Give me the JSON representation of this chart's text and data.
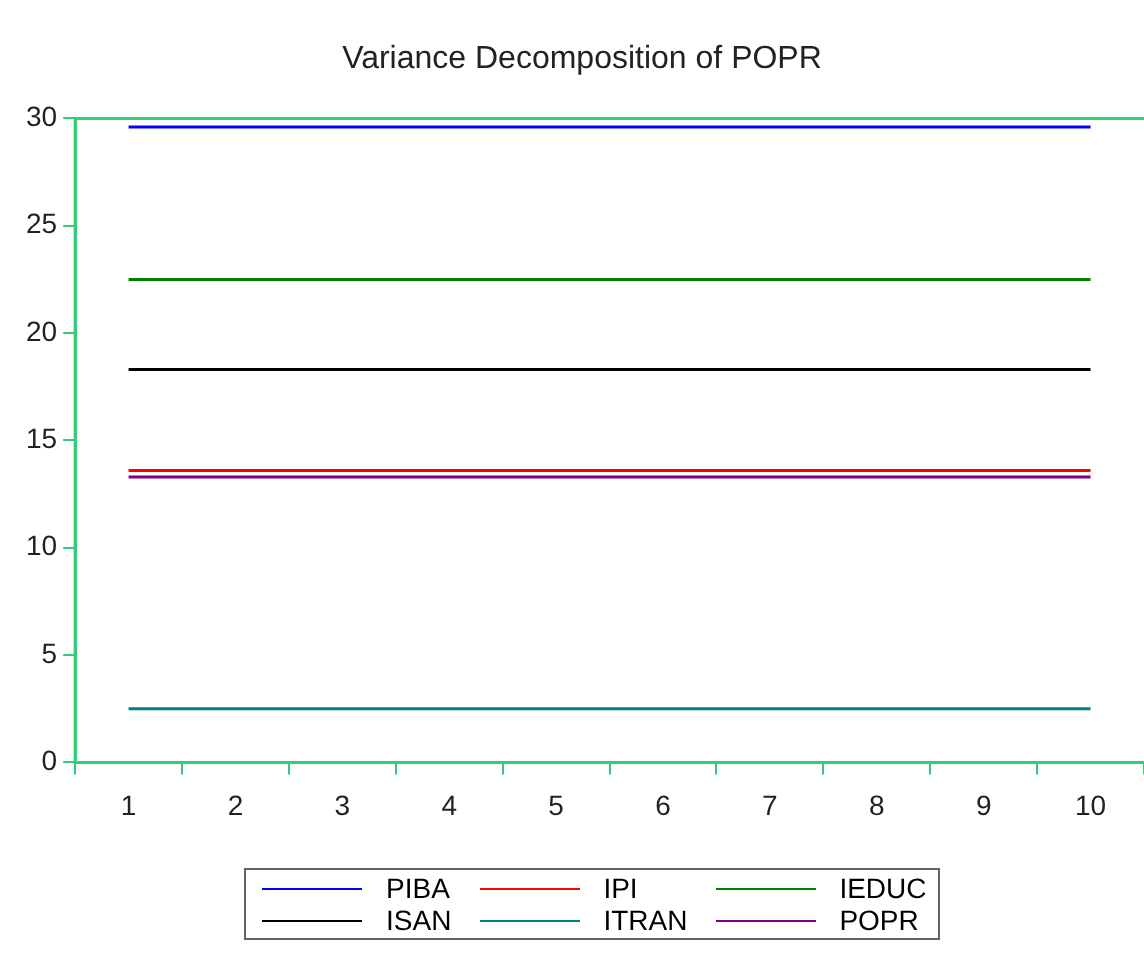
{
  "chart_data": {
    "type": "line",
    "title": "Variance Decomposition of POPR",
    "categories": [
      "1",
      "2",
      "3",
      "4",
      "5",
      "6",
      "7",
      "8",
      "9",
      "10"
    ],
    "series": [
      {
        "name": "PIBA",
        "color": "#0000ff",
        "values": [
          29.6,
          29.6,
          29.6,
          29.6,
          29.6,
          29.6,
          29.6,
          29.6,
          29.6,
          29.6
        ]
      },
      {
        "name": "IPI",
        "color": "#ff0000",
        "values": [
          13.6,
          13.6,
          13.6,
          13.6,
          13.6,
          13.6,
          13.6,
          13.6,
          13.6,
          13.6
        ]
      },
      {
        "name": "IEDUC",
        "color": "#008000",
        "values": [
          22.5,
          22.5,
          22.5,
          22.5,
          22.5,
          22.5,
          22.5,
          22.5,
          22.5,
          22.5
        ]
      },
      {
        "name": "ISAN",
        "color": "#000000",
        "values": [
          18.3,
          18.3,
          18.3,
          18.3,
          18.3,
          18.3,
          18.3,
          18.3,
          18.3,
          18.3
        ]
      },
      {
        "name": "ITRAN",
        "color": "#008080",
        "values": [
          2.5,
          2.5,
          2.5,
          2.5,
          2.5,
          2.5,
          2.5,
          2.5,
          2.5,
          2.5
        ]
      },
      {
        "name": "POPR",
        "color": "#800080",
        "values": [
          13.3,
          13.3,
          13.3,
          13.3,
          13.3,
          13.3,
          13.3,
          13.3,
          13.3,
          13.3
        ]
      }
    ],
    "ylim": [
      0,
      30
    ],
    "yticks": [
      0,
      5,
      10,
      15,
      20,
      25,
      30
    ],
    "grid": false,
    "legend": "bottom",
    "marker": "none",
    "line_style": "solid"
  }
}
